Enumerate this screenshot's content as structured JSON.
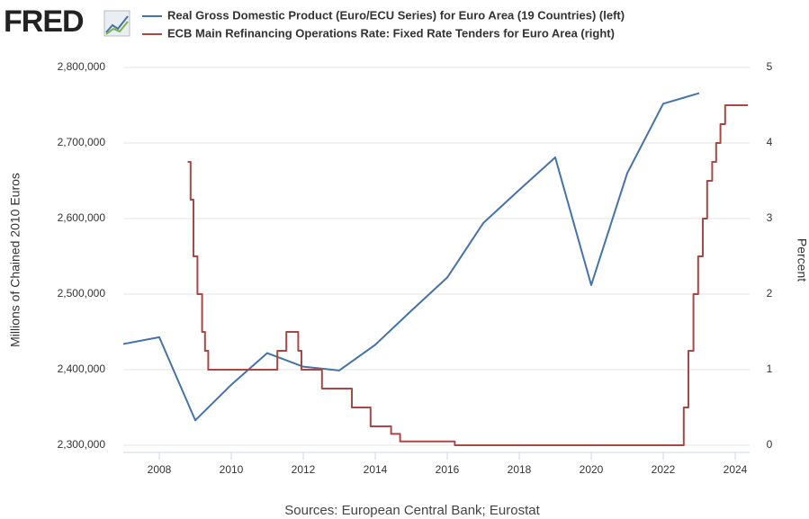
{
  "brand": "FRED",
  "chart_data": {
    "type": "line",
    "source": "Sources: European Central Bank; Eurostat",
    "ylabel": "Millions of Chained 2010 Euros",
    "y2label": "Percent",
    "xlim": [
      2007,
      2024.4
    ],
    "xticks": [
      2008,
      2010,
      2012,
      2014,
      2016,
      2018,
      2020,
      2022,
      2024
    ],
    "ylim": [
      2300000,
      2800000
    ],
    "yticks": [
      {
        "value": 2300000,
        "label": "2,300,000"
      },
      {
        "value": 2400000,
        "label": "2,400,000"
      },
      {
        "value": 2500000,
        "label": "2,500,000"
      },
      {
        "value": 2600000,
        "label": "2,600,000"
      },
      {
        "value": 2700000,
        "label": "2,700,000"
      },
      {
        "value": 2800000,
        "label": "2,800,000"
      }
    ],
    "y2lim": [
      0,
      5
    ],
    "y2ticks": [
      0,
      1,
      2,
      3,
      4,
      5
    ],
    "grid": true,
    "series": [
      {
        "name": "Real Gross Domestic Product (Euro/ECU Series) for Euro Area (19 Countries) (left)",
        "color": "#4572a7",
        "x": [
          2007,
          2008,
          2009,
          2010,
          2011,
          2012,
          2013,
          2014,
          2015,
          2016,
          2017,
          2018,
          2019,
          2020,
          2021,
          2022,
          2023
        ],
        "values": [
          2434000,
          2443000,
          2333000,
          2380000,
          2422000,
          2404000,
          2399000,
          2433000,
          2478000,
          2522000,
          2594000,
          2638000,
          2681000,
          2512000,
          2660000,
          2752000,
          2766000
        ]
      },
      {
        "name": "ECB Main Refinancing Operations Rate: Fixed Rate Tenders for Euro Area (right)",
        "color": "#aa4643",
        "axis": "y2",
        "x": [
          2008.79,
          2008.87,
          2008.87,
          2008.95,
          2008.95,
          2009.06,
          2009.06,
          2009.19,
          2009.19,
          2009.27,
          2009.27,
          2009.36,
          2009.36,
          2011.28,
          2011.28,
          2011.53,
          2011.53,
          2011.86,
          2011.86,
          2011.95,
          2011.95,
          2012.52,
          2012.52,
          2013.35,
          2013.35,
          2013.87,
          2013.87,
          2014.44,
          2014.44,
          2014.69,
          2014.69,
          2016.21,
          2016.21,
          2022.57,
          2022.57,
          2022.7,
          2022.7,
          2022.84,
          2022.84,
          2022.97,
          2022.97,
          2023.1,
          2023.1,
          2023.22,
          2023.22,
          2023.36,
          2023.36,
          2023.47,
          2023.47,
          2023.59,
          2023.59,
          2023.72,
          2023.72,
          2024.35
        ],
        "values": [
          3.75,
          3.75,
          3.25,
          3.25,
          2.5,
          2.5,
          2.0,
          2.0,
          1.5,
          1.5,
          1.25,
          1.25,
          1.0,
          1.0,
          1.25,
          1.25,
          1.5,
          1.5,
          1.25,
          1.25,
          1.0,
          1.0,
          0.75,
          0.75,
          0.5,
          0.5,
          0.25,
          0.25,
          0.15,
          0.15,
          0.05,
          0.05,
          0,
          0,
          0.5,
          0.5,
          1.25,
          1.25,
          2.0,
          2.0,
          2.5,
          2.5,
          3.0,
          3.0,
          3.5,
          3.5,
          3.75,
          3.75,
          4.0,
          4.0,
          4.25,
          4.25,
          4.5,
          4.5
        ]
      }
    ]
  }
}
